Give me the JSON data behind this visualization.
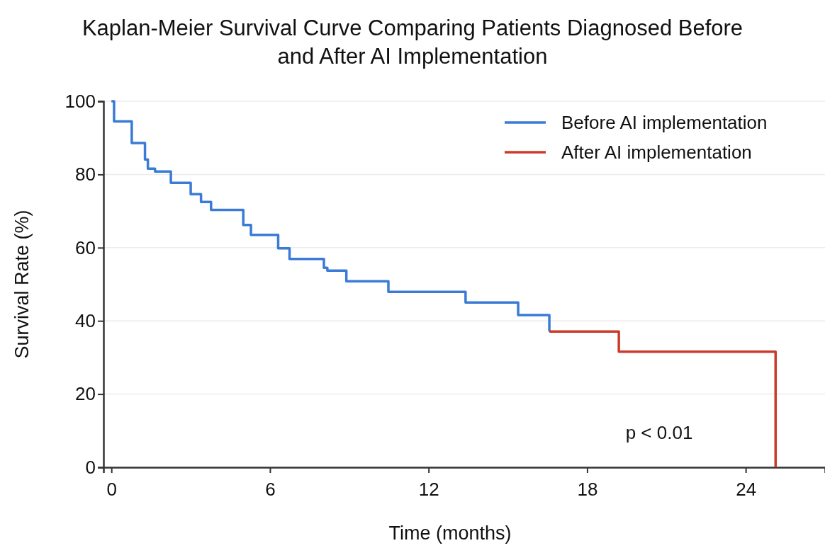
{
  "chart_data": {
    "type": "step",
    "title": "Kaplan-Meier Survival Curve Comparing Patients Diagnosed Before and After AI Implementation",
    "xlabel": "Time (months)",
    "ylabel": "Survival Rate (%)",
    "series": [
      {
        "name": "Before AI implementation",
        "color": "#3a7bd5",
        "x": [
          0,
          0.1,
          0.77,
          1.27,
          1.38,
          1.65,
          2.25,
          3.0,
          3.39,
          3.77,
          4.99,
          5.28,
          6.31,
          6.74,
          8.04,
          8.17,
          8.89,
          10.48,
          13.4,
          15.39,
          16.57
        ],
        "values": [
          100,
          94.5,
          88.6,
          84.1,
          81.6,
          80.8,
          77.7,
          74.6,
          72.5,
          70.3,
          66.2,
          63.5,
          59.8,
          56.9,
          54.5,
          53.7,
          50.8,
          47.9,
          45.0,
          41.6,
          37.1
        ]
      },
      {
        "name": "After AI implementation",
        "color": "#cc3a2b",
        "x": [
          16.57,
          19.2,
          25.13
        ],
        "values": [
          37.1,
          31.6,
          0
        ]
      }
    ],
    "xlim": [
      -0.3,
      27
    ],
    "xticks": [
      0,
      6,
      12,
      18,
      24
    ],
    "ylim": [
      0,
      100
    ],
    "yticks": [
      0,
      20,
      40,
      60,
      80,
      100
    ],
    "grid": "y",
    "legend": "top right",
    "line_style": "solid",
    "marker": "none",
    "annotations": [
      "p < 0.01"
    ]
  }
}
